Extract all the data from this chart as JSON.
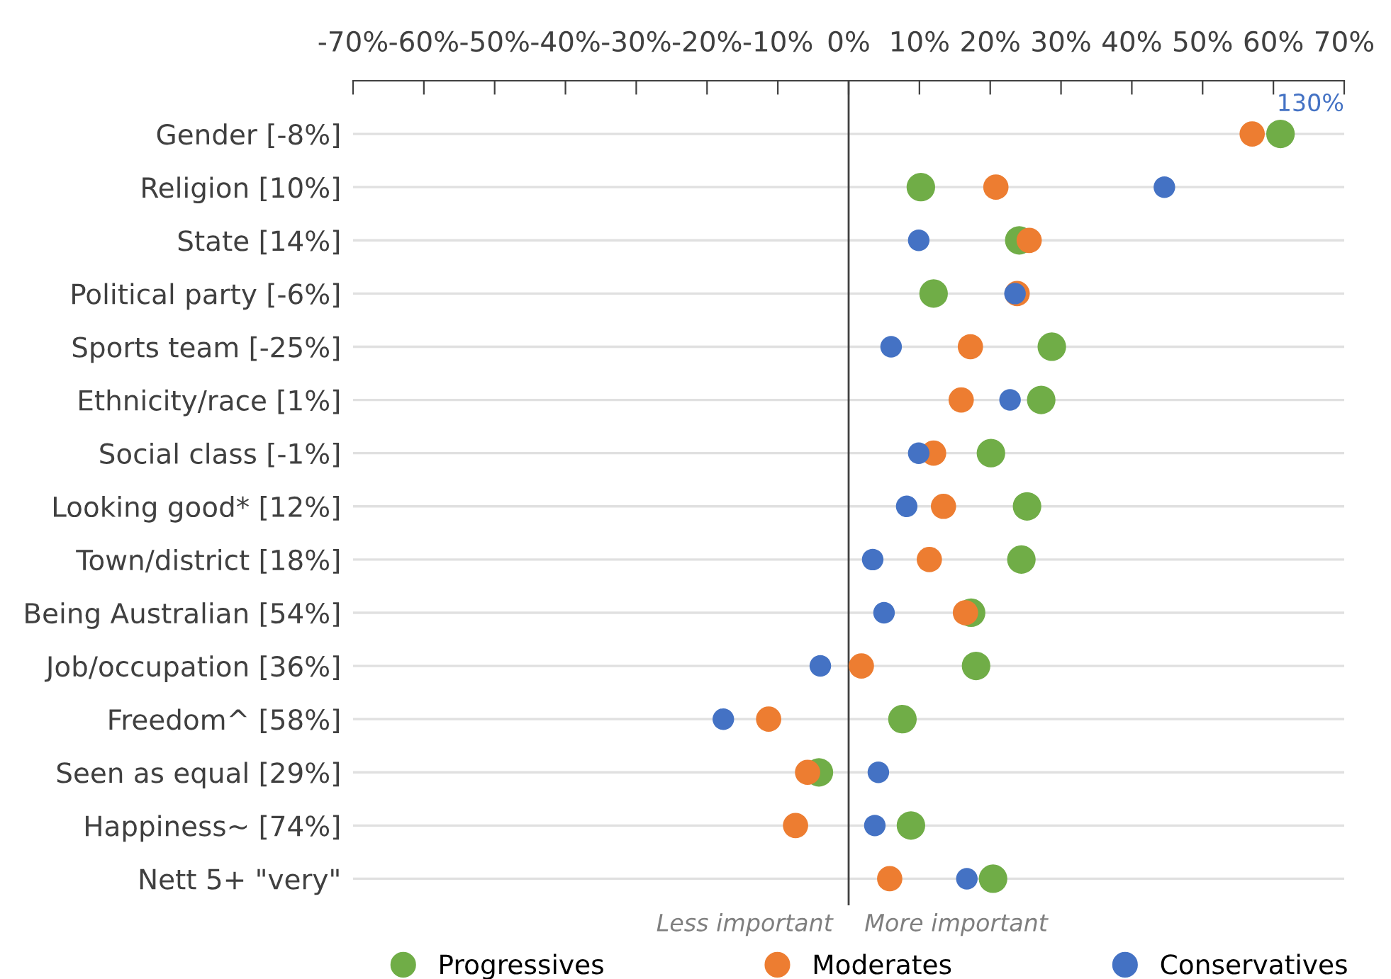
{
  "chart_data": {
    "type": "scatter",
    "categories": [
      "Gender [-8%]",
      "Religion [10%]",
      "State [14%]",
      "Political party [-6%]",
      "Sports team [-25%]",
      "Ethnicity/race [1%]",
      "Social class [-1%]",
      "Looking good* [12%]",
      "Town/district [18%]",
      "Being Australian [54%]",
      "Job/occupation [36%]",
      "Freedom^ [58%]",
      "Seen as equal [29%]",
      "Happiness~ [74%]",
      "Nett 5+ \"very\""
    ],
    "orientation": "horizontal",
    "series": [
      {
        "name": "Progressives",
        "color": "#70ad47",
        "values": [
          61,
          10.2,
          24.1,
          12.0,
          28.7,
          27.2,
          20.1,
          25.2,
          24.4,
          17.3,
          18.0,
          7.6,
          -4.2,
          8.8,
          20.4
        ]
      },
      {
        "name": "Moderates",
        "color": "#ed7d31",
        "values": [
          57,
          20.8,
          25.5,
          23.8,
          17.2,
          15.9,
          12.0,
          13.4,
          11.4,
          16.5,
          1.8,
          -11.3,
          -5.8,
          -7.5,
          5.8
        ]
      },
      {
        "name": "Conservatives",
        "color": "#4472c4",
        "values": [
          null,
          44.6,
          9.9,
          23.5,
          6.0,
          22.8,
          9.9,
          8.2,
          3.4,
          5.0,
          -4.0,
          -17.7,
          4.2,
          3.7,
          16.7
        ]
      }
    ],
    "xlim": [
      -70,
      70
    ],
    "xticks": [
      {
        "value": -70,
        "label": "-70%"
      },
      {
        "value": -60,
        "label": "-60%"
      },
      {
        "value": -50,
        "label": "-50%"
      },
      {
        "value": -40,
        "label": "-40%"
      },
      {
        "value": -30,
        "label": "-30%"
      },
      {
        "value": -20,
        "label": "-20%"
      },
      {
        "value": -10,
        "label": "-10%"
      },
      {
        "value": 0,
        "label": "0%"
      },
      {
        "value": 10,
        "label": "10%"
      },
      {
        "value": 20,
        "label": "20%"
      },
      {
        "value": 30,
        "label": "30%"
      },
      {
        "value": 40,
        "label": "40%"
      },
      {
        "value": 50,
        "label": "50%"
      },
      {
        "value": 60,
        "label": "60%"
      },
      {
        "value": 70,
        "label": "70%"
      }
    ],
    "ref_lines": [
      {
        "axis": "x",
        "value": 0,
        "color": "#404040"
      }
    ],
    "annotations": [
      "130%",
      "Less important",
      "More important"
    ],
    "grid": "y",
    "marker": "circle",
    "legend": "bottom"
  }
}
